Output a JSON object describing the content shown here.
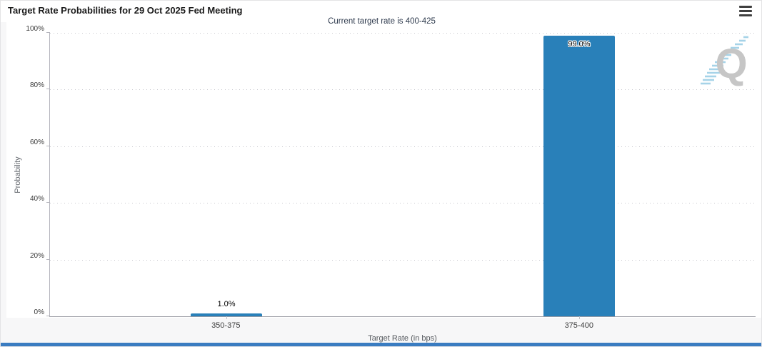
{
  "header": {
    "title": "Target Rate Probabilities for 29 Oct 2025 Fed Meeting"
  },
  "chart_data": {
    "type": "bar",
    "title": "Target Rate Probabilities for 29 Oct 2025 Fed Meeting",
    "subtitle": "Current target rate is 400-425",
    "categories": [
      "350-375",
      "375-400"
    ],
    "values": [
      1.0,
      99.0
    ],
    "value_labels": [
      "1.0%",
      "99.0%"
    ],
    "xlabel": "Target Rate (in bps)",
    "ylabel": "Probability",
    "ylim": [
      0,
      100
    ],
    "ytick_labels": [
      "0%",
      "20%",
      "40%",
      "60%",
      "80%",
      "100%"
    ],
    "grid": "horizontal-dotted",
    "legend": "none",
    "bar_color": "#2980b9"
  },
  "watermark": {
    "letter": "Q"
  },
  "colors": {
    "bar": "#2980b9",
    "bottom_bar": "#3a7cc1",
    "subtitle_text": "#2e3a4d",
    "grid_dots": "#c9c9cf"
  }
}
